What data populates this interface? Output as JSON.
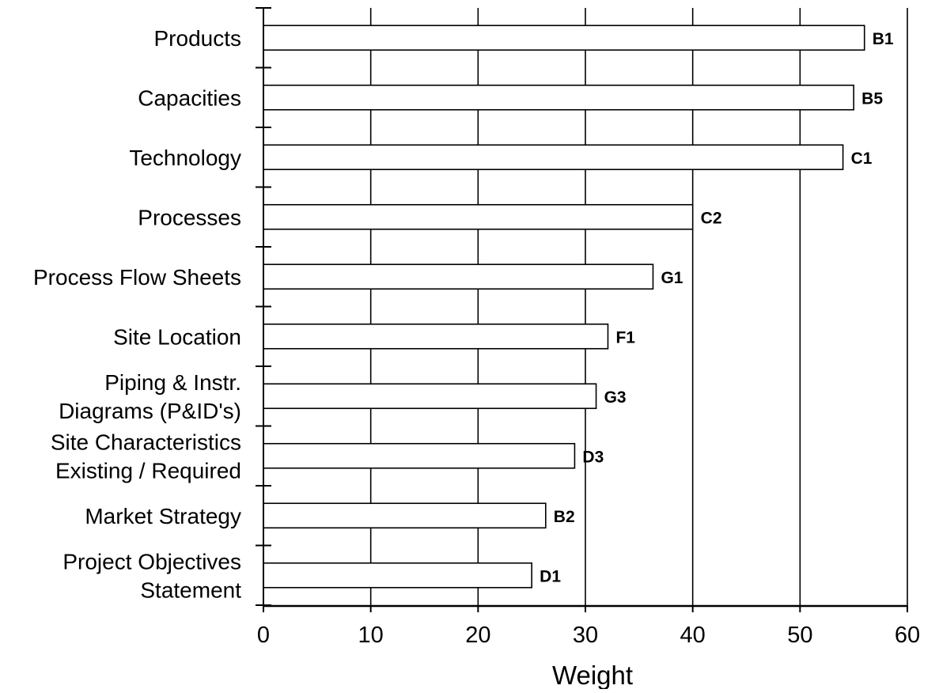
{
  "chart_data": {
    "type": "bar",
    "orientation": "horizontal",
    "title": "",
    "xlabel": "Weight",
    "ylabel": "",
    "xlim": [
      0,
      60
    ],
    "x_ticks": [
      0,
      10,
      20,
      30,
      40,
      50,
      60
    ],
    "grid": "vertical lines every 10",
    "legend": "none",
    "bar_fill": "#ffffff",
    "bar_stroke": "#000000",
    "categories": [
      [
        "Products"
      ],
      [
        "Capacities"
      ],
      [
        "Technology"
      ],
      [
        "Processes"
      ],
      [
        "Process Flow Sheets"
      ],
      [
        "Site Location"
      ],
      [
        "Piping & Instr.",
        "Diagrams (P&ID's)"
      ],
      [
        "Site Characteristics",
        "Existing / Required"
      ],
      [
        "Market Strategy"
      ],
      [
        "Project Objectives",
        "Statement"
      ]
    ],
    "values": [
      56,
      55,
      54,
      40,
      36.3,
      32.1,
      31,
      29,
      26.3,
      25
    ],
    "bar_labels": [
      "B1",
      "B5",
      "C1",
      "C2",
      "G1",
      "F1",
      "G3",
      "D3",
      "B2",
      "D1"
    ]
  }
}
